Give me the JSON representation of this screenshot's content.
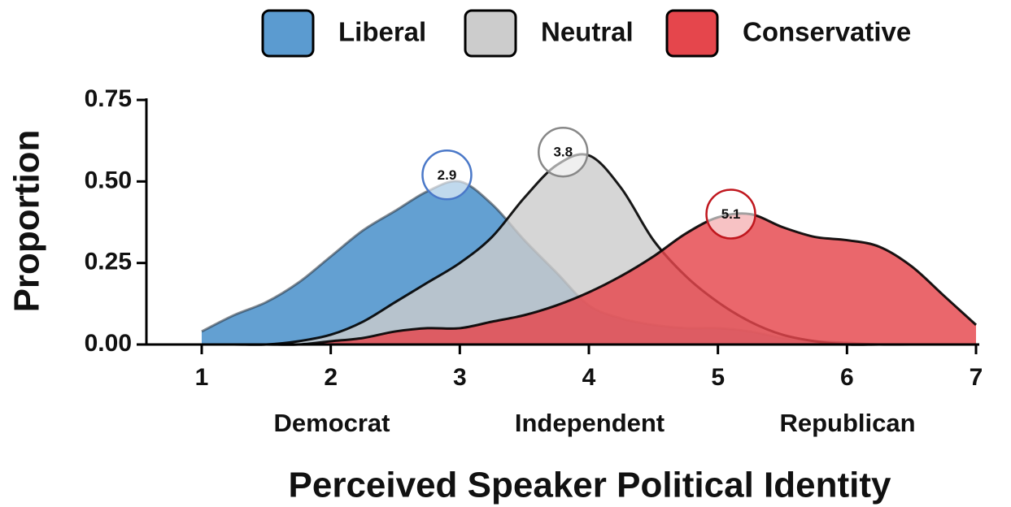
{
  "chart_data": {
    "type": "area",
    "x_label": "Perceived Speaker Political Identity",
    "y_label": "Proportion",
    "x_groups": [
      "Democrat",
      "Independent",
      "Republican"
    ],
    "x": [
      1,
      1.25,
      1.5,
      1.75,
      2,
      2.25,
      2.5,
      2.75,
      3,
      3.25,
      3.5,
      3.75,
      4,
      4.25,
      4.5,
      4.75,
      5,
      5.25,
      5.5,
      5.75,
      6,
      6.25,
      6.5,
      6.75,
      7
    ],
    "series": [
      {
        "name": "Liberal",
        "color": "#5b9bd0",
        "values": [
          0.04,
          0.09,
          0.13,
          0.19,
          0.27,
          0.35,
          0.41,
          0.47,
          0.5,
          0.43,
          0.32,
          0.22,
          0.12,
          0.08,
          0.06,
          0.05,
          0.05,
          0.04,
          0.02,
          0.01,
          0.005,
          0,
          0,
          0,
          0
        ],
        "marker": {
          "x": 2.9,
          "y": 0.52
        },
        "marker_color": "#4a78c8"
      },
      {
        "name": "Neutral",
        "color": "#cccccc",
        "values": [
          0,
          0,
          0,
          0.01,
          0.03,
          0.07,
          0.13,
          0.19,
          0.25,
          0.33,
          0.45,
          0.55,
          0.58,
          0.48,
          0.32,
          0.21,
          0.13,
          0.07,
          0.03,
          0.01,
          0,
          0,
          0,
          0,
          0
        ],
        "marker": {
          "x": 3.8,
          "y": 0.59
        },
        "marker_color": "#888888"
      },
      {
        "name": "Conservative",
        "color": "#e5464c",
        "values": [
          0,
          0,
          0,
          0,
          0.01,
          0.02,
          0.04,
          0.05,
          0.05,
          0.07,
          0.09,
          0.12,
          0.16,
          0.21,
          0.27,
          0.34,
          0.39,
          0.4,
          0.36,
          0.33,
          0.32,
          0.3,
          0.24,
          0.15,
          0.06
        ],
        "marker": {
          "x": 5.1,
          "y": 0.4
        },
        "marker_color": "#c0171e"
      }
    ],
    "xlim": [
      1,
      7
    ],
    "xticks": [
      1,
      2,
      3,
      4,
      5,
      6,
      7
    ],
    "ylim": [
      0,
      0.75
    ],
    "yticks": [
      {
        "value": 0,
        "label": "0.00"
      },
      {
        "value": 0.25,
        "label": "0.25"
      },
      {
        "value": 0.5,
        "label": "0.50"
      },
      {
        "value": 0.75,
        "label": "0.75"
      }
    ],
    "legend": "top"
  }
}
